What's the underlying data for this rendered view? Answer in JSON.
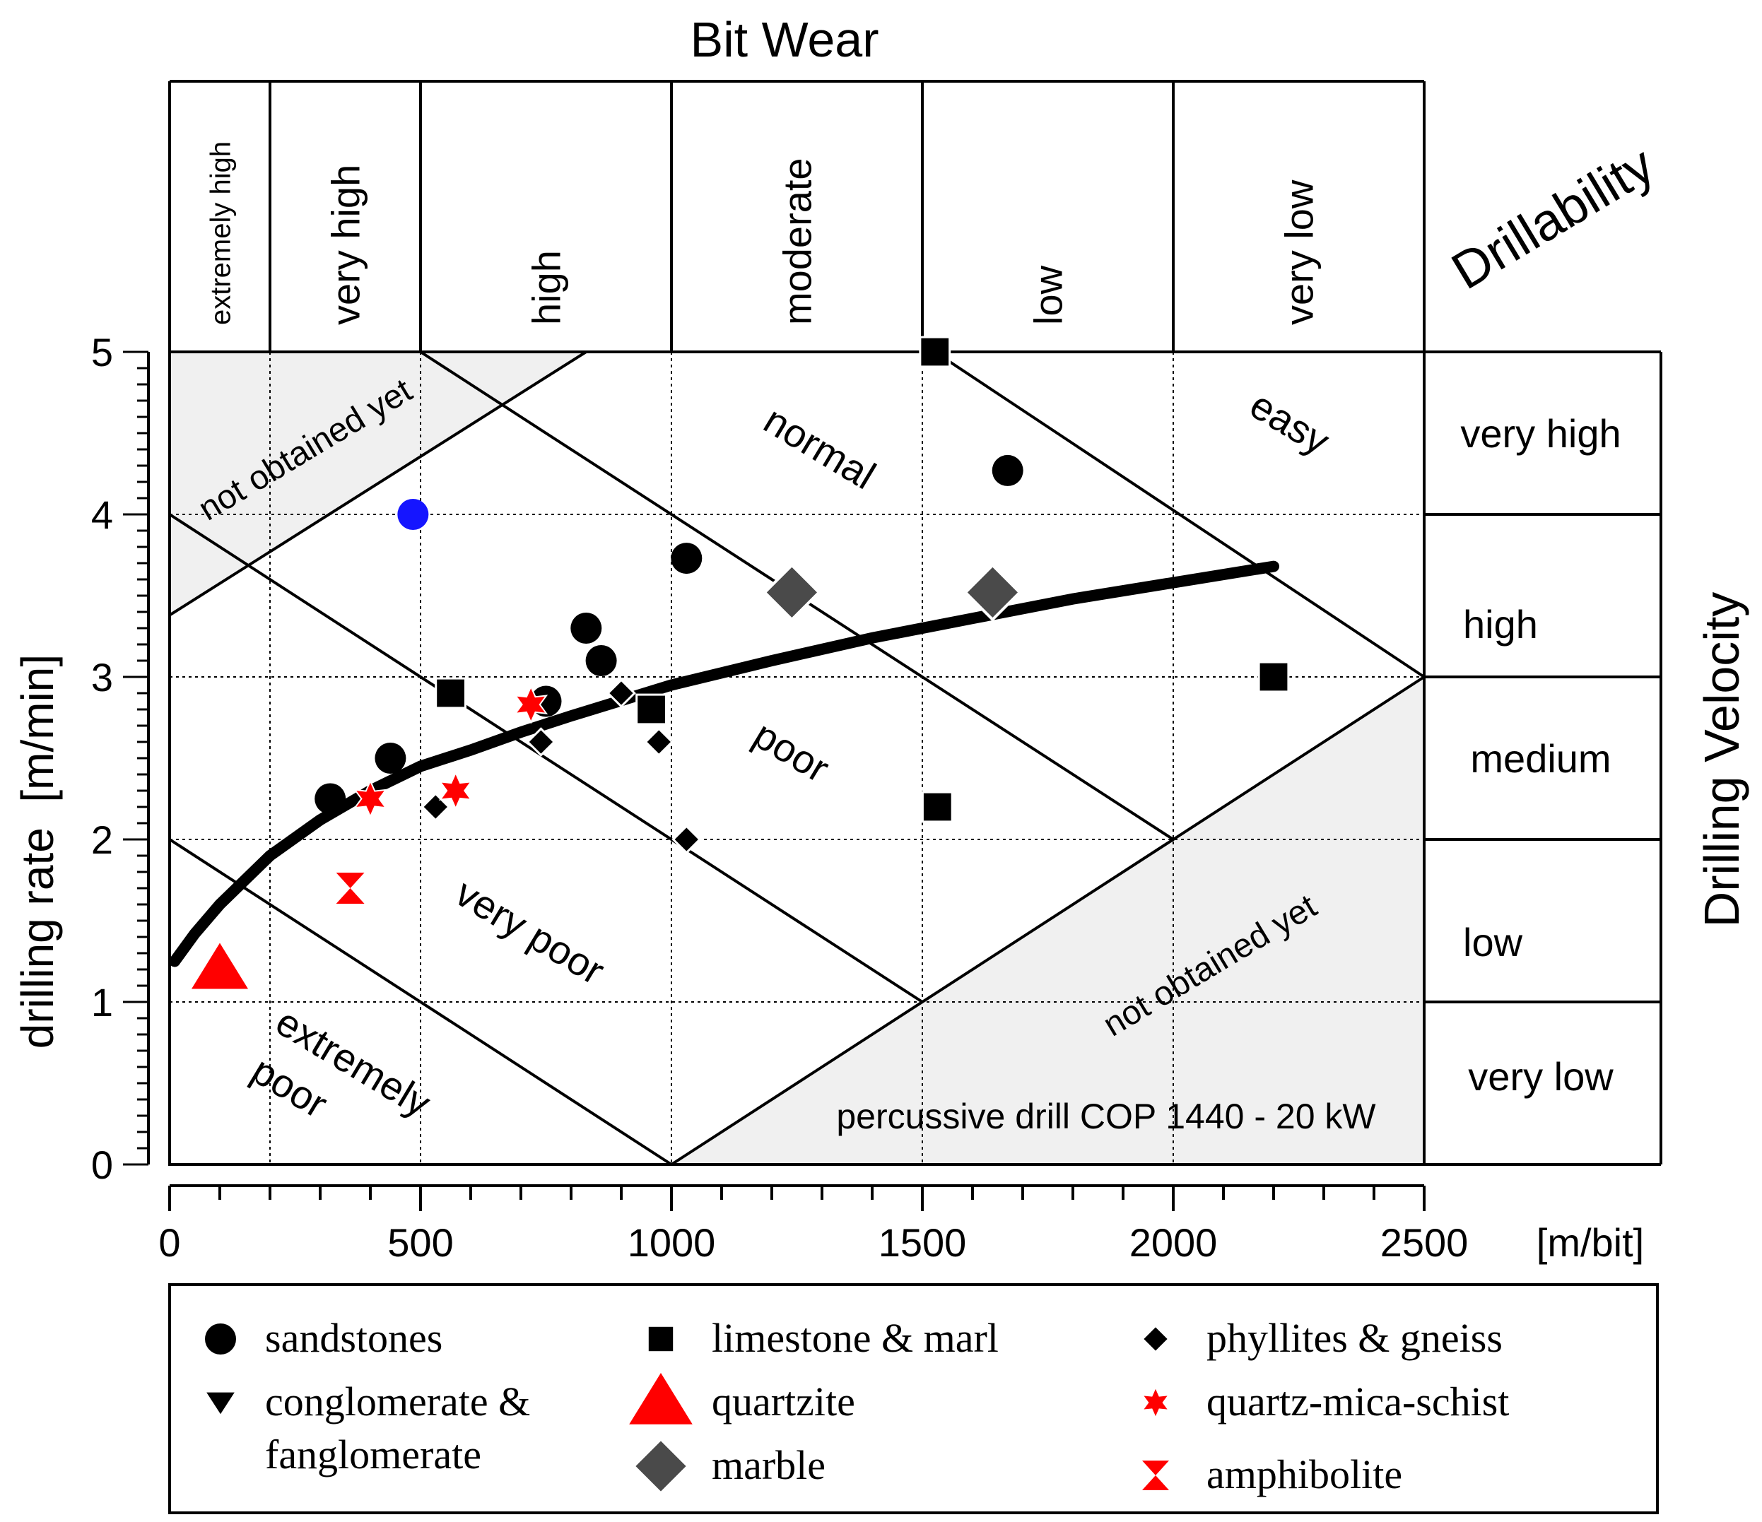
{
  "chart_data": {
    "type": "scatter",
    "title": "Bit Wear",
    "xlabel": "[m/bit]",
    "ylabel": "drilling rate  [m/min]",
    "right_label": "Drilling Velocity",
    "top_right_label": "Drillability",
    "xlim": [
      0,
      2500
    ],
    "ylim": [
      0,
      5
    ],
    "x_ticks": [
      "0",
      "500",
      "1000",
      "1500",
      "2000",
      "2500"
    ],
    "y_ticks": [
      "0",
      "1",
      "2",
      "3",
      "4",
      "5"
    ],
    "bit_wear_classes": [
      {
        "label": "extremely high",
        "from": 0,
        "to": 200
      },
      {
        "label": "very high",
        "from": 200,
        "to": 500
      },
      {
        "label": "high",
        "from": 500,
        "to": 1000
      },
      {
        "label": "moderate",
        "from": 1000,
        "to": 1500
      },
      {
        "label": "low",
        "from": 1500,
        "to": 2000
      },
      {
        "label": "very low",
        "from": 2000,
        "to": 2500
      }
    ],
    "drilling_velocity_classes": [
      {
        "label": "very high",
        "from": 4,
        "to": 5
      },
      {
        "label": "high",
        "from": 3,
        "to": 4
      },
      {
        "label": "medium",
        "from": 2,
        "to": 3
      },
      {
        "label": "low",
        "from": 1,
        "to": 2
      },
      {
        "label": "very low",
        "from": 0,
        "to": 1
      }
    ],
    "drillability_zones": [
      "extremely poor",
      "very poor",
      "poor",
      "normal",
      "easy"
    ],
    "not_obtained_label": "not obtained yet",
    "annotation": "percussive drill COP 1440 - 20 kW",
    "trend_curve": {
      "name": "fit",
      "points": [
        [
          10,
          1.25
        ],
        [
          50,
          1.42
        ],
        [
          100,
          1.6
        ],
        [
          200,
          1.9
        ],
        [
          300,
          2.12
        ],
        [
          400,
          2.3
        ],
        [
          500,
          2.45
        ],
        [
          600,
          2.55
        ],
        [
          700,
          2.66
        ],
        [
          800,
          2.76
        ],
        [
          1000,
          2.95
        ],
        [
          1200,
          3.1
        ],
        [
          1400,
          3.24
        ],
        [
          1600,
          3.36
        ],
        [
          1800,
          3.48
        ],
        [
          2000,
          3.58
        ],
        [
          2200,
          3.68
        ]
      ]
    },
    "series": [
      {
        "name": "sandstones",
        "marker": "circle",
        "color": "#000000",
        "x": [
          320,
          440,
          750,
          830,
          860,
          1030,
          1670
        ],
        "y": [
          2.25,
          2.5,
          2.85,
          3.3,
          3.1,
          3.73,
          4.27
        ]
      },
      {
        "name": "sandstones (blue)",
        "marker": "circle",
        "color": "#1515ff",
        "x": [
          485
        ],
        "y": [
          4.0
        ]
      },
      {
        "name": "limestone & marl",
        "marker": "square",
        "color": "#000000",
        "x": [
          560,
          960,
          1525,
          1530,
          2200
        ],
        "y": [
          2.9,
          2.8,
          5.0,
          2.2,
          3.0
        ]
      },
      {
        "name": "phyllites & gneiss",
        "marker": "diamond",
        "color": "#000000",
        "x": [
          530,
          740,
          900,
          975,
          1030
        ],
        "y": [
          2.2,
          2.6,
          2.9,
          2.6,
          2.0
        ]
      },
      {
        "name": "conglomerate & fanglomerate",
        "marker": "triangle-down",
        "color": "#000000",
        "x": [],
        "y": []
      },
      {
        "name": "quartzite",
        "marker": "triangle-up",
        "color": "#ff0000",
        "x": [
          100
        ],
        "y": [
          1.2
        ]
      },
      {
        "name": "quartz-mica-schist",
        "marker": "star",
        "color": "#ff0000",
        "x": [
          400,
          570,
          720
        ],
        "y": [
          2.25,
          2.3,
          2.83
        ]
      },
      {
        "name": "marble",
        "marker": "diamond-big",
        "color": "#4a4a4a",
        "x": [
          1240,
          1640
        ],
        "y": [
          3.52,
          3.52
        ]
      },
      {
        "name": "amphibolite",
        "marker": "hourglass",
        "color": "#ff0000",
        "x": [
          360
        ],
        "y": [
          1.7
        ]
      }
    ],
    "legend": {
      "placement": "bottom",
      "entries": [
        {
          "label": "sandstones",
          "marker": "circle",
          "color": "#000000"
        },
        {
          "label": "limestone & marl",
          "marker": "square",
          "color": "#000000"
        },
        {
          "label": "phyllites & gneiss",
          "marker": "diamond",
          "color": "#000000"
        },
        {
          "label": "conglomerate &",
          "label2": "fanglomerate",
          "marker": "triangle-down",
          "color": "#000000"
        },
        {
          "label": "quartzite",
          "marker": "triangle-up",
          "color": "#ff0000"
        },
        {
          "label": "quartz-mica-schist",
          "marker": "star",
          "color": "#ff0000"
        },
        {
          "label": "marble",
          "marker": "diamond-big",
          "color": "#4a4a4a"
        },
        {
          "label": "amphibolite",
          "marker": "hourglass",
          "color": "#ff0000"
        }
      ]
    }
  }
}
